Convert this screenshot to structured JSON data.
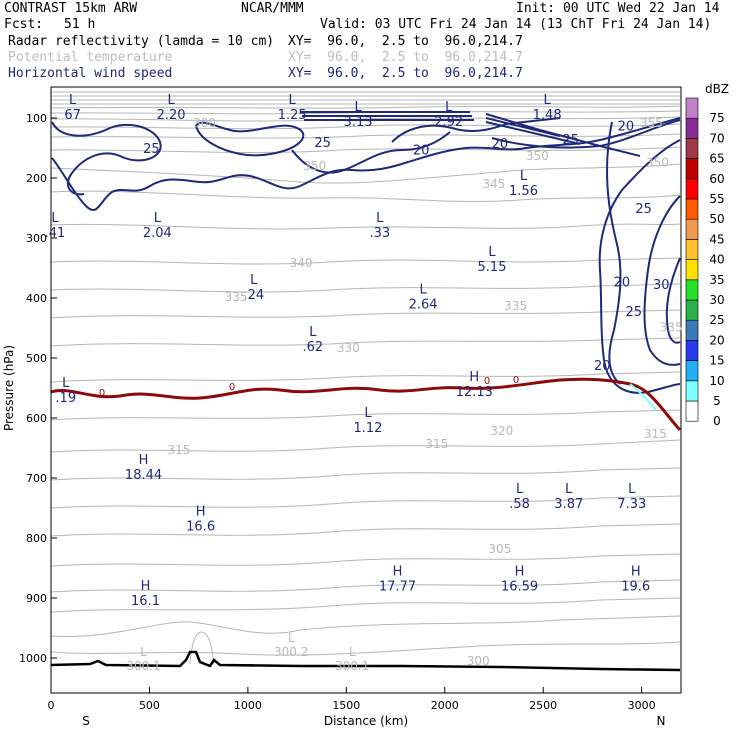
{
  "header": {
    "model": "CONTRAST 15km ARW",
    "org": "NCAR/MMM",
    "init": "Init: 00 UTC Wed 22 Jan 14",
    "fcst_label": "Fcst:",
    "fcst_value": "51 h",
    "valid": "Valid: 03 UTC Fri 24 Jan 14 (13 ChT Fri 24 Jan 14)"
  },
  "fields": [
    {
      "name": "Radar reflectivity (lamda = 10 cm)",
      "xy": "XY=  96.0,  2.5 to  96.0,214.7",
      "color": "#000000"
    },
    {
      "name": "Potential temperature",
      "xy": "XY=  96.0,  2.5 to  96.0,214.7",
      "color": "#bdbdbd"
    },
    {
      "name": "Horizontal wind speed",
      "xy": "XY=  96.0,  2.5 to  96.0,214.7",
      "color": "#1e2a78"
    }
  ],
  "chart_data": {
    "type": "cross-section",
    "xlabel": "Distance (km)",
    "ylabel": "Pressure (hPa)",
    "xlim": [
      0,
      3200
    ],
    "ylim": [
      1050,
      70
    ],
    "x_ticks": [
      0,
      500,
      1000,
      1500,
      2000,
      2500,
      3000
    ],
    "y_ticks": [
      100,
      200,
      300,
      400,
      500,
      600,
      700,
      800,
      900,
      1000
    ],
    "endpoints": {
      "left": "S",
      "right": "N"
    },
    "freezing_level_label": "0",
    "colorbar": {
      "unit": "dBZ",
      "levels": [
        0,
        5,
        10,
        15,
        20,
        25,
        30,
        35,
        40,
        45,
        50,
        55,
        60,
        65,
        70,
        75
      ],
      "colors": [
        "#ffffff",
        "#7fffff",
        "#1fb1f2",
        "#2b3bf0",
        "#3b7ab8",
        "#2bb04a",
        "#28e028",
        "#ffe000",
        "#ffc030",
        "#f09a50",
        "#ff5a00",
        "#ff0000",
        "#c00000",
        "#a0394a",
        "#8a2c98",
        "#c080c8"
      ]
    },
    "wind_labels": [
      {
        "type": "L",
        "value": "67",
        "x": 110,
        "p": 98
      },
      {
        "type": "L",
        "value": "2.20",
        "x": 610,
        "p": 98
      },
      {
        "type": "L",
        "value": "1.25",
        "x": 1225,
        "p": 98
      },
      {
        "type": "L",
        "value": "3.13",
        "x": 1560,
        "p": 110
      },
      {
        "type": "L",
        "value": "2.92",
        "x": 2020,
        "p": 110
      },
      {
        "type": "L",
        "value": "1.48",
        "x": 2520,
        "p": 98
      },
      {
        "type": "L",
        "value": "1.56",
        "x": 2400,
        "p": 225
      },
      {
        "type": "L",
        "value": ".41",
        "x": 20,
        "p": 295
      },
      {
        "type": "L",
        "value": "2.04",
        "x": 540,
        "p": 295
      },
      {
        "type": "L",
        "value": ".33",
        "x": 1670,
        "p": 295
      },
      {
        "type": "L",
        "value": "5.15",
        "x": 2240,
        "p": 352
      },
      {
        "type": "L",
        "value": ".24",
        "x": 1030,
        "p": 398
      },
      {
        "type": "L",
        "value": "2.64",
        "x": 1890,
        "p": 414
      },
      {
        "type": "L",
        "value": ".62",
        "x": 1330,
        "p": 485
      },
      {
        "type": "L",
        "value": ".19",
        "x": 75,
        "p": 570
      },
      {
        "type": "H",
        "value": "12.13",
        "x": 2150,
        "p": 560
      },
      {
        "type": "L",
        "value": "1.12",
        "x": 1610,
        "p": 620
      },
      {
        "type": "H",
        "value": "18.44",
        "x": 470,
        "p": 698
      },
      {
        "type": "L",
        "value": ".58",
        "x": 2380,
        "p": 747
      },
      {
        "type": "L",
        "value": "3.87",
        "x": 2630,
        "p": 747
      },
      {
        "type": "L",
        "value": "7.33",
        "x": 2950,
        "p": 747
      },
      {
        "type": "H",
        "value": "16.6",
        "x": 760,
        "p": 784
      },
      {
        "type": "H",
        "value": "17.77",
        "x": 1760,
        "p": 884
      },
      {
        "type": "H",
        "value": "16.59",
        "x": 2380,
        "p": 884
      },
      {
        "type": "H",
        "value": "19.6",
        "x": 2970,
        "p": 884
      },
      {
        "type": "H",
        "value": "16.1",
        "x": 480,
        "p": 908
      }
    ],
    "wind_contour_labels": [
      {
        "value": "25",
        "x": 510,
        "p": 158
      },
      {
        "value": "25",
        "x": 1380,
        "p": 148
      },
      {
        "value": "20",
        "x": 1880,
        "p": 161
      },
      {
        "value": "20",
        "x": 2280,
        "p": 150
      },
      {
        "value": "25",
        "x": 2640,
        "p": 143
      },
      {
        "value": "20",
        "x": 2920,
        "p": 121
      },
      {
        "value": "25",
        "x": 3010,
        "p": 258
      },
      {
        "value": "20",
        "x": 2900,
        "p": 381
      },
      {
        "value": "30",
        "x": 3100,
        "p": 385
      },
      {
        "value": "25",
        "x": 2960,
        "p": 430
      },
      {
        "value": "20",
        "x": 2800,
        "p": 520
      }
    ],
    "theta_labels": [
      {
        "value": "350",
        "x": 1340,
        "p": 187
      },
      {
        "value": "350",
        "x": 2470,
        "p": 170
      },
      {
        "value": "345",
        "x": 2250,
        "p": 217
      },
      {
        "value": "340",
        "x": 1270,
        "p": 348
      },
      {
        "value": "335",
        "x": 940,
        "p": 405
      },
      {
        "value": "335",
        "x": 2360,
        "p": 420
      },
      {
        "value": "330",
        "x": 1510,
        "p": 490
      },
      {
        "value": "320",
        "x": 2290,
        "p": 628
      },
      {
        "value": "315",
        "x": 650,
        "p": 660
      },
      {
        "value": "315",
        "x": 1960,
        "p": 650
      },
      {
        "value": "315",
        "x": 3070,
        "p": 633
      },
      {
        "value": "305",
        "x": 2280,
        "p": 825
      },
      {
        "value": "300",
        "x": 2170,
        "p": 1012
      },
      {
        "value": "300",
        "x": 780,
        "p": 115
      },
      {
        "value": "355",
        "x": 3050,
        "p": 115
      },
      {
        "value": "350",
        "x": 3080,
        "p": 181
      },
      {
        "value": "335",
        "x": 3150,
        "p": 456
      }
    ],
    "theta_extrema": [
      {
        "type": "L",
        "value": "300.1",
        "x": 470,
        "p": 1018
      },
      {
        "type": "L",
        "value": "300.2",
        "x": 1220,
        "p": 995
      },
      {
        "type": "L",
        "value": "300.1",
        "x": 1530,
        "p": 1018
      }
    ]
  }
}
